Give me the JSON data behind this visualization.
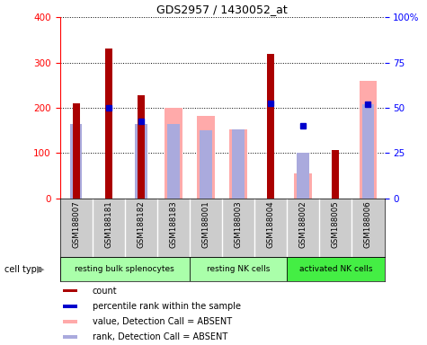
{
  "title": "GDS2957 / 1430052_at",
  "samples": [
    "GSM188007",
    "GSM188181",
    "GSM188182",
    "GSM188183",
    "GSM188001",
    "GSM188003",
    "GSM188004",
    "GSM188002",
    "GSM188005",
    "GSM188006"
  ],
  "count_values": [
    210,
    330,
    228,
    null,
    null,
    null,
    320,
    null,
    107,
    null
  ],
  "percentile_values": [
    null,
    200,
    170,
    null,
    null,
    null,
    210,
    160,
    null,
    207
  ],
  "absent_value_values": [
    null,
    null,
    null,
    200,
    183,
    152,
    null,
    55,
    null,
    260
  ],
  "absent_rank_values": [
    165,
    null,
    165,
    165,
    150,
    152,
    null,
    100,
    null,
    207
  ],
  "ylim_left": [
    0,
    400
  ],
  "yticks_left": [
    0,
    100,
    200,
    300,
    400
  ],
  "ytick_labels_right": [
    "0",
    "25",
    "50",
    "75",
    "100%"
  ],
  "color_count": "#aa0000",
  "color_percentile": "#0000cc",
  "color_absent_value": "#ffaaaa",
  "color_absent_rank": "#aaaadd",
  "cell_groups": [
    {
      "label": "resting bulk splenocytes",
      "start": 0,
      "end": 3,
      "color": "#aaffaa"
    },
    {
      "label": "resting NK cells",
      "start": 4,
      "end": 6,
      "color": "#aaffaa"
    },
    {
      "label": "activated NK cells",
      "start": 7,
      "end": 9,
      "color": "#44ee44"
    }
  ],
  "legend_items": [
    {
      "color": "#aa0000",
      "label": "count"
    },
    {
      "color": "#0000cc",
      "label": "percentile rank within the sample"
    },
    {
      "color": "#ffaaaa",
      "label": "value, Detection Call = ABSENT"
    },
    {
      "color": "#aaaadd",
      "label": "rank, Detection Call = ABSENT"
    }
  ]
}
